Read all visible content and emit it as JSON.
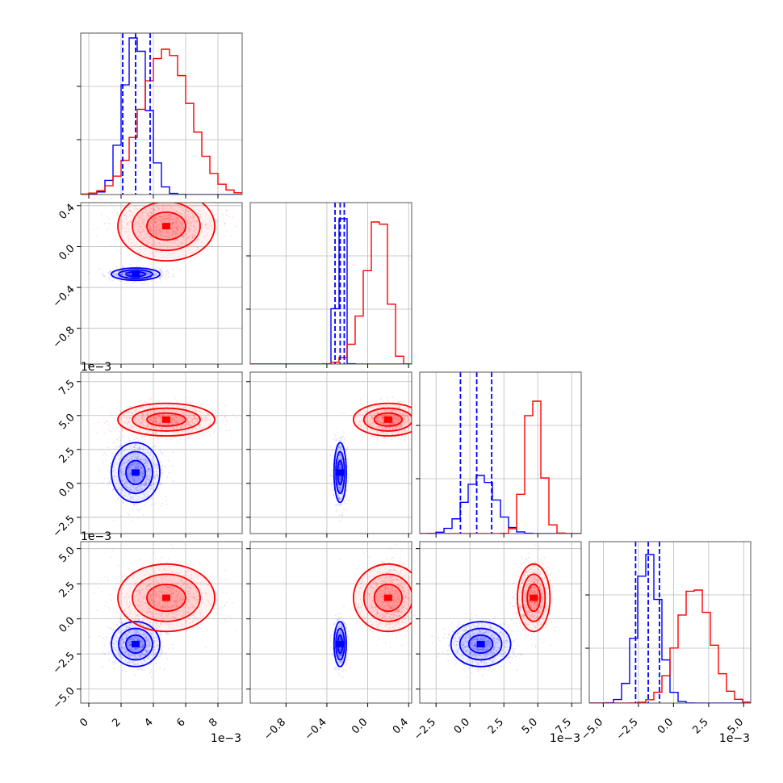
{
  "figure": {
    "background": "#ffffff",
    "grid": true,
    "colors": {
      "series_a": "#0000ff",
      "series_b": "#ff0000",
      "axes": "#555555",
      "grid": "#bbbbbb"
    }
  },
  "chart_data": {
    "type": "corner",
    "parameters": [
      {
        "range": [
          -0.0005,
          0.0095
        ],
        "ticks": [
          0,
          0.002,
          0.004,
          0.006,
          0.008
        ],
        "tick_labels": [
          "0",
          "2",
          "4",
          "6",
          "8"
        ],
        "offset_label": "1e−3"
      },
      {
        "range": [
          -1.15,
          0.43
        ],
        "ticks": [
          -0.8,
          -0.4,
          0.0,
          0.4
        ],
        "tick_labels": [
          "−0.8",
          "−0.4",
          "0.0",
          "0.4"
        ],
        "offset_label": ""
      },
      {
        "range": [
          -0.0037,
          0.0082
        ],
        "ticks": [
          -0.0025,
          0.0,
          0.0025,
          0.005,
          0.0075
        ],
        "tick_labels": [
          "−2.5",
          "0.0",
          "2.5",
          "5.0",
          "7.5"
        ],
        "offset_label": "1e−3"
      },
      {
        "range": [
          -0.006,
          0.0055
        ],
        "ticks": [
          -0.005,
          -0.0025,
          0.0,
          0.0025,
          0.005
        ],
        "tick_labels": [
          "−5.0",
          "−2.5",
          "0.0",
          "2.5",
          "5.0"
        ],
        "offset_label": "1e−3"
      }
    ],
    "series": [
      {
        "color": "#0000ff",
        "means": [
          0.0029,
          -0.27,
          0.0008,
          -0.0018
        ],
        "sds": [
          0.00075,
          0.03,
          0.0011,
          0.0008
        ],
        "quantiles": [
          [
            0.0021,
            0.0029,
            0.0038
          ],
          [
            -0.32,
            -0.27,
            -0.23
          ],
          [
            -0.0007,
            0.0005,
            0.0016
          ],
          [
            -0.0027,
            -0.0018,
            -0.001
          ]
        ],
        "hist_scale": [
          0.97,
          0.9,
          0.36,
          0.92
        ]
      },
      {
        "color": "#ff0000",
        "means": [
          0.0048,
          0.2,
          0.0047,
          0.0015
        ],
        "sds": [
          0.0015,
          0.17,
          0.0006,
          0.0012
        ],
        "skew": [
          0,
          -2.5,
          0,
          0
        ],
        "hist_scale": [
          0.9,
          0.88,
          0.82,
          0.7
        ]
      }
    ]
  }
}
